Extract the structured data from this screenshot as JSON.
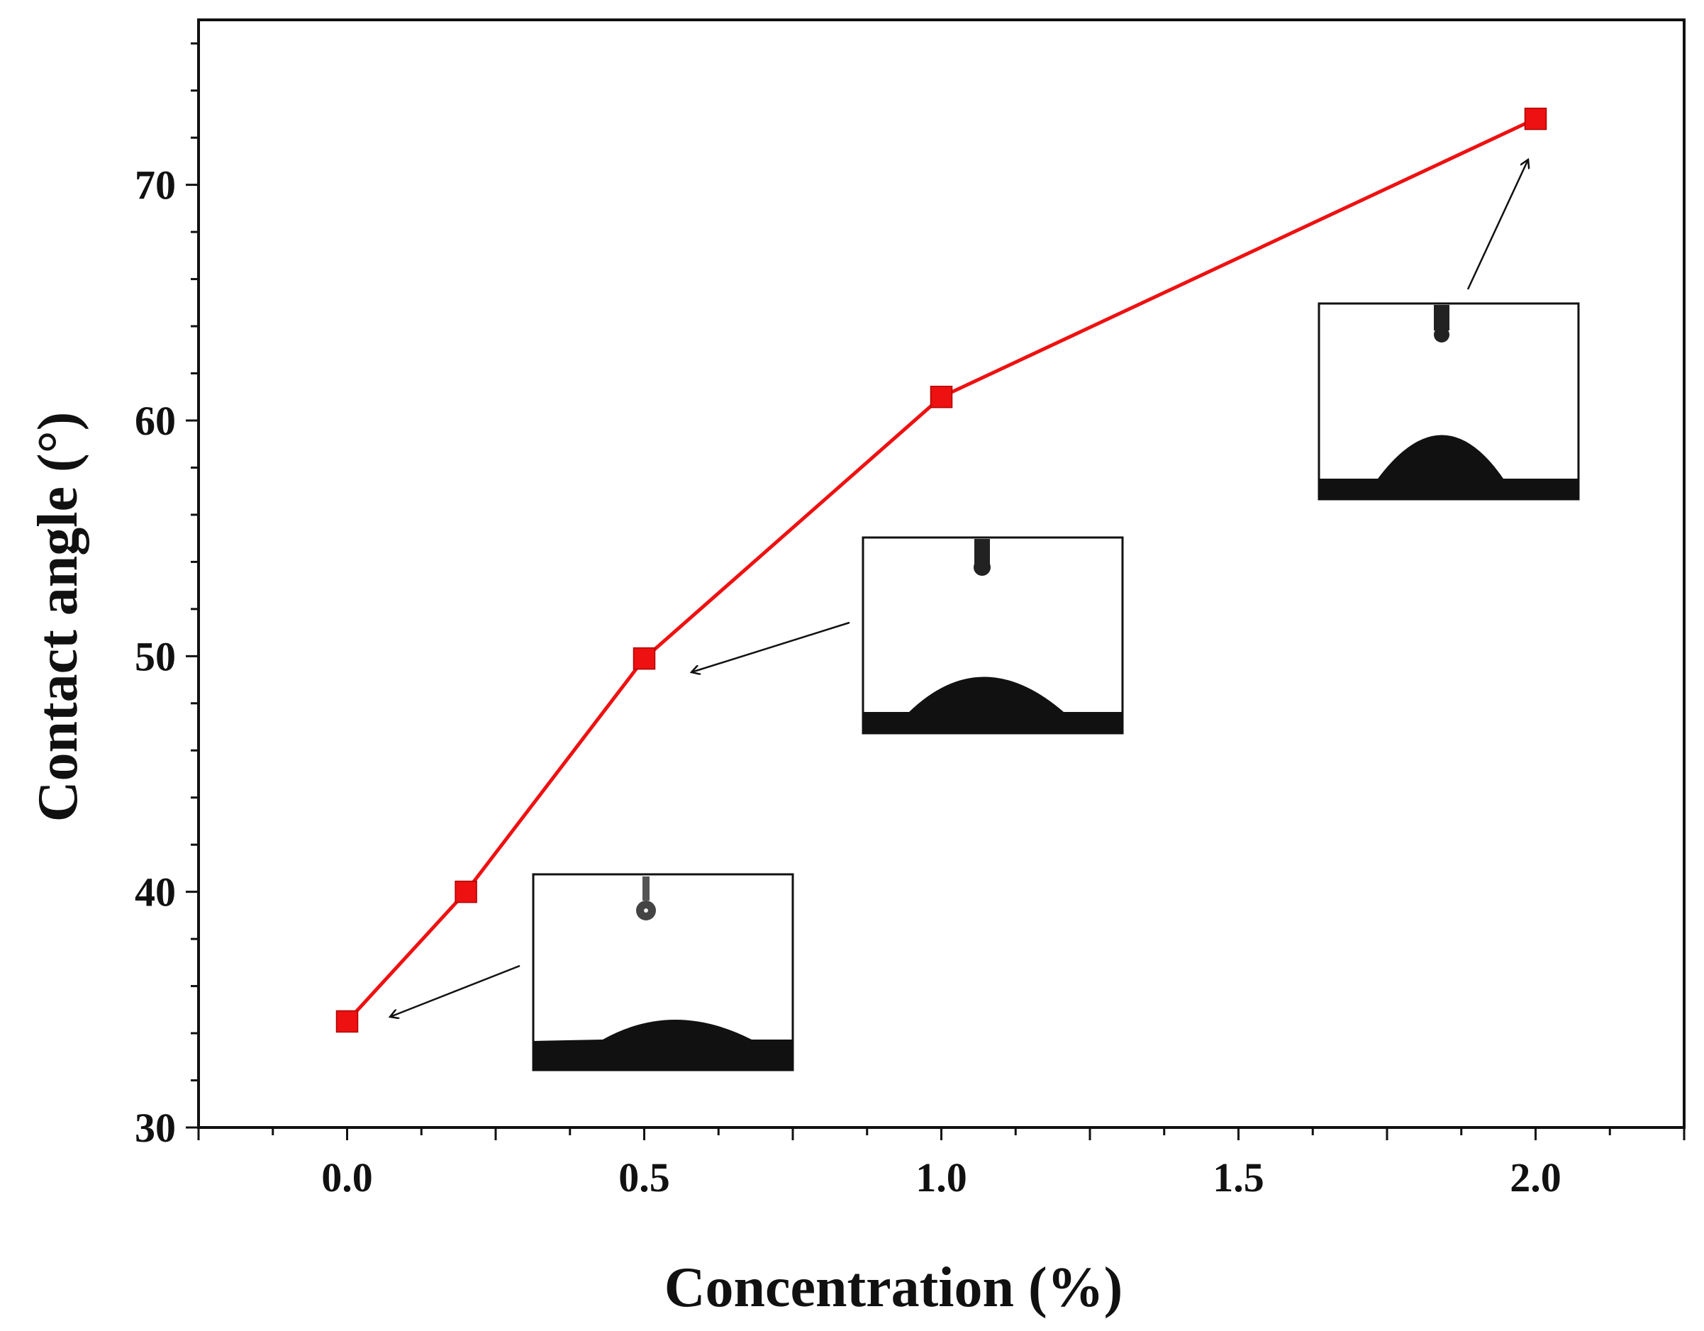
{
  "chart_data": {
    "type": "line",
    "title": "",
    "xlabel": "Concentration (%)",
    "ylabel": "Contact angle (°)",
    "xlim": [
      -0.25,
      2.25
    ],
    "ylim": [
      30,
      77
    ],
    "x_ticks": [
      0.0,
      0.5,
      1.0,
      1.5,
      2.0
    ],
    "x_tick_labels": [
      "0.0",
      "0.5",
      "1.0",
      "1.5",
      "2.0"
    ],
    "y_ticks": [
      30,
      40,
      50,
      60,
      70
    ],
    "y_tick_labels": [
      "30",
      "40",
      "50",
      "60",
      "70"
    ],
    "grid": false,
    "series": [
      {
        "name": "Contact angle",
        "color": "#ee1111",
        "marker": "square",
        "x": [
          0.0,
          0.2,
          0.5,
          1.0,
          2.0
        ],
        "y": [
          34.5,
          40.0,
          49.9,
          61.0,
          72.8
        ]
      }
    ],
    "insets": [
      {
        "name": "droplet-0",
        "points_to_x": 0.0,
        "points_to_y": 34.5,
        "description": "droplet image"
      },
      {
        "name": "droplet-0-5",
        "points_to_x": 0.5,
        "points_to_y": 49.9,
        "description": "droplet image"
      },
      {
        "name": "droplet-2-0",
        "points_to_x": 2.0,
        "points_to_y": 72.8,
        "description": "droplet image"
      }
    ]
  }
}
